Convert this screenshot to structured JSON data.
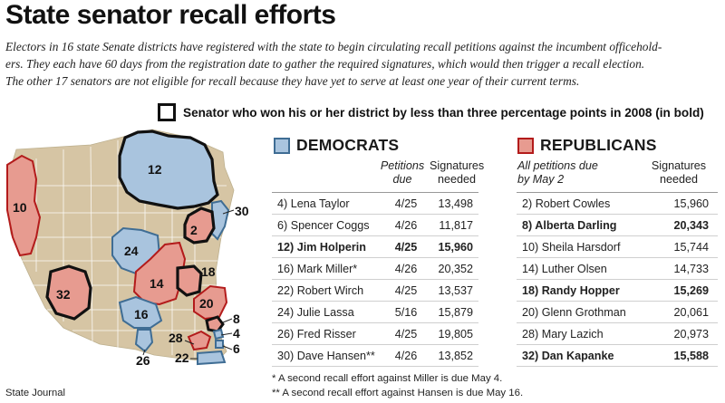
{
  "title": "State senator recall efforts",
  "intro": [
    "Electors in 16 state Senate districts have registered with the state to begin circulating recall petitions against the incumbent officehold-",
    "ers. They each have 60 days from the registration date to gather the required signatures, which would then trigger a recall election.",
    "The other 17 senators are not eligible for recall because they have yet to serve at least one year of their current terms."
  ],
  "legend": {
    "text": "Senator who won his or her district by less than three percentage points in 2008 (in bold)"
  },
  "colors": {
    "democrat_fill": "#a9c4de",
    "democrat_border": "#3f6d94",
    "republican_fill": "#e79b90",
    "republican_border": "#b31b1b",
    "state_fill": "#d6c5a4",
    "close_border": "#111111"
  },
  "map_labels": [
    "12",
    "30",
    "2",
    "24",
    "10",
    "18",
    "14",
    "32",
    "20",
    "16",
    "8",
    "4",
    "28",
    "6",
    "26",
    "22"
  ],
  "democrats": {
    "heading": "DEMOCRATS",
    "col_due": [
      "Petitions",
      "due"
    ],
    "col_sig": [
      "Signatures",
      "needed"
    ],
    "rows": [
      {
        "name": "4) Lena Taylor",
        "due": "4/25",
        "sig": "13,498",
        "bold": false
      },
      {
        "name": "6) Spencer Coggs",
        "due": "4/26",
        "sig": "11,817",
        "bold": false
      },
      {
        "name": "12) Jim Holperin",
        "due": "4/25",
        "sig": "15,960",
        "bold": true
      },
      {
        "name": "16) Mark Miller*",
        "due": "4/26",
        "sig": "20,352",
        "bold": false
      },
      {
        "name": "22) Robert Wirch",
        "due": "4/25",
        "sig": "13,537",
        "bold": false
      },
      {
        "name": "24) Julie Lassa",
        "due": "5/16",
        "sig": "15,879",
        "bold": false
      },
      {
        "name": "26) Fred Risser",
        "due": "4/25",
        "sig": "19,805",
        "bold": false
      },
      {
        "name": "30) Dave Hansen**",
        "due": "4/26",
        "sig": "13,852",
        "bold": false
      }
    ]
  },
  "republicans": {
    "heading": "REPUBLICANS",
    "col_due": [
      "All petitions due",
      "by May 2"
    ],
    "col_sig": [
      "Signatures",
      "needed"
    ],
    "rows": [
      {
        "name": "2) Robert Cowles",
        "sig": "15,960",
        "bold": false
      },
      {
        "name": "8) Alberta Darling",
        "sig": "20,343",
        "bold": true
      },
      {
        "name": "10) Sheila Harsdorf",
        "sig": "15,744",
        "bold": false
      },
      {
        "name": "14) Luther Olsen",
        "sig": "14,733",
        "bold": false
      },
      {
        "name": "18) Randy Hopper",
        "sig": "15,269",
        "bold": true
      },
      {
        "name": "20) Glenn Grothman",
        "sig": "20,061",
        "bold": false
      },
      {
        "name": "28) Mary Lazich",
        "sig": "20,973",
        "bold": false
      },
      {
        "name": "32) Dan Kapanke",
        "sig": "15,588",
        "bold": true
      }
    ]
  },
  "footnotes": [
    "* A second recall effort against Miller is due May 4.",
    "** A second recall effort against Hansen is due May 16."
  ],
  "credit": "State Journal"
}
